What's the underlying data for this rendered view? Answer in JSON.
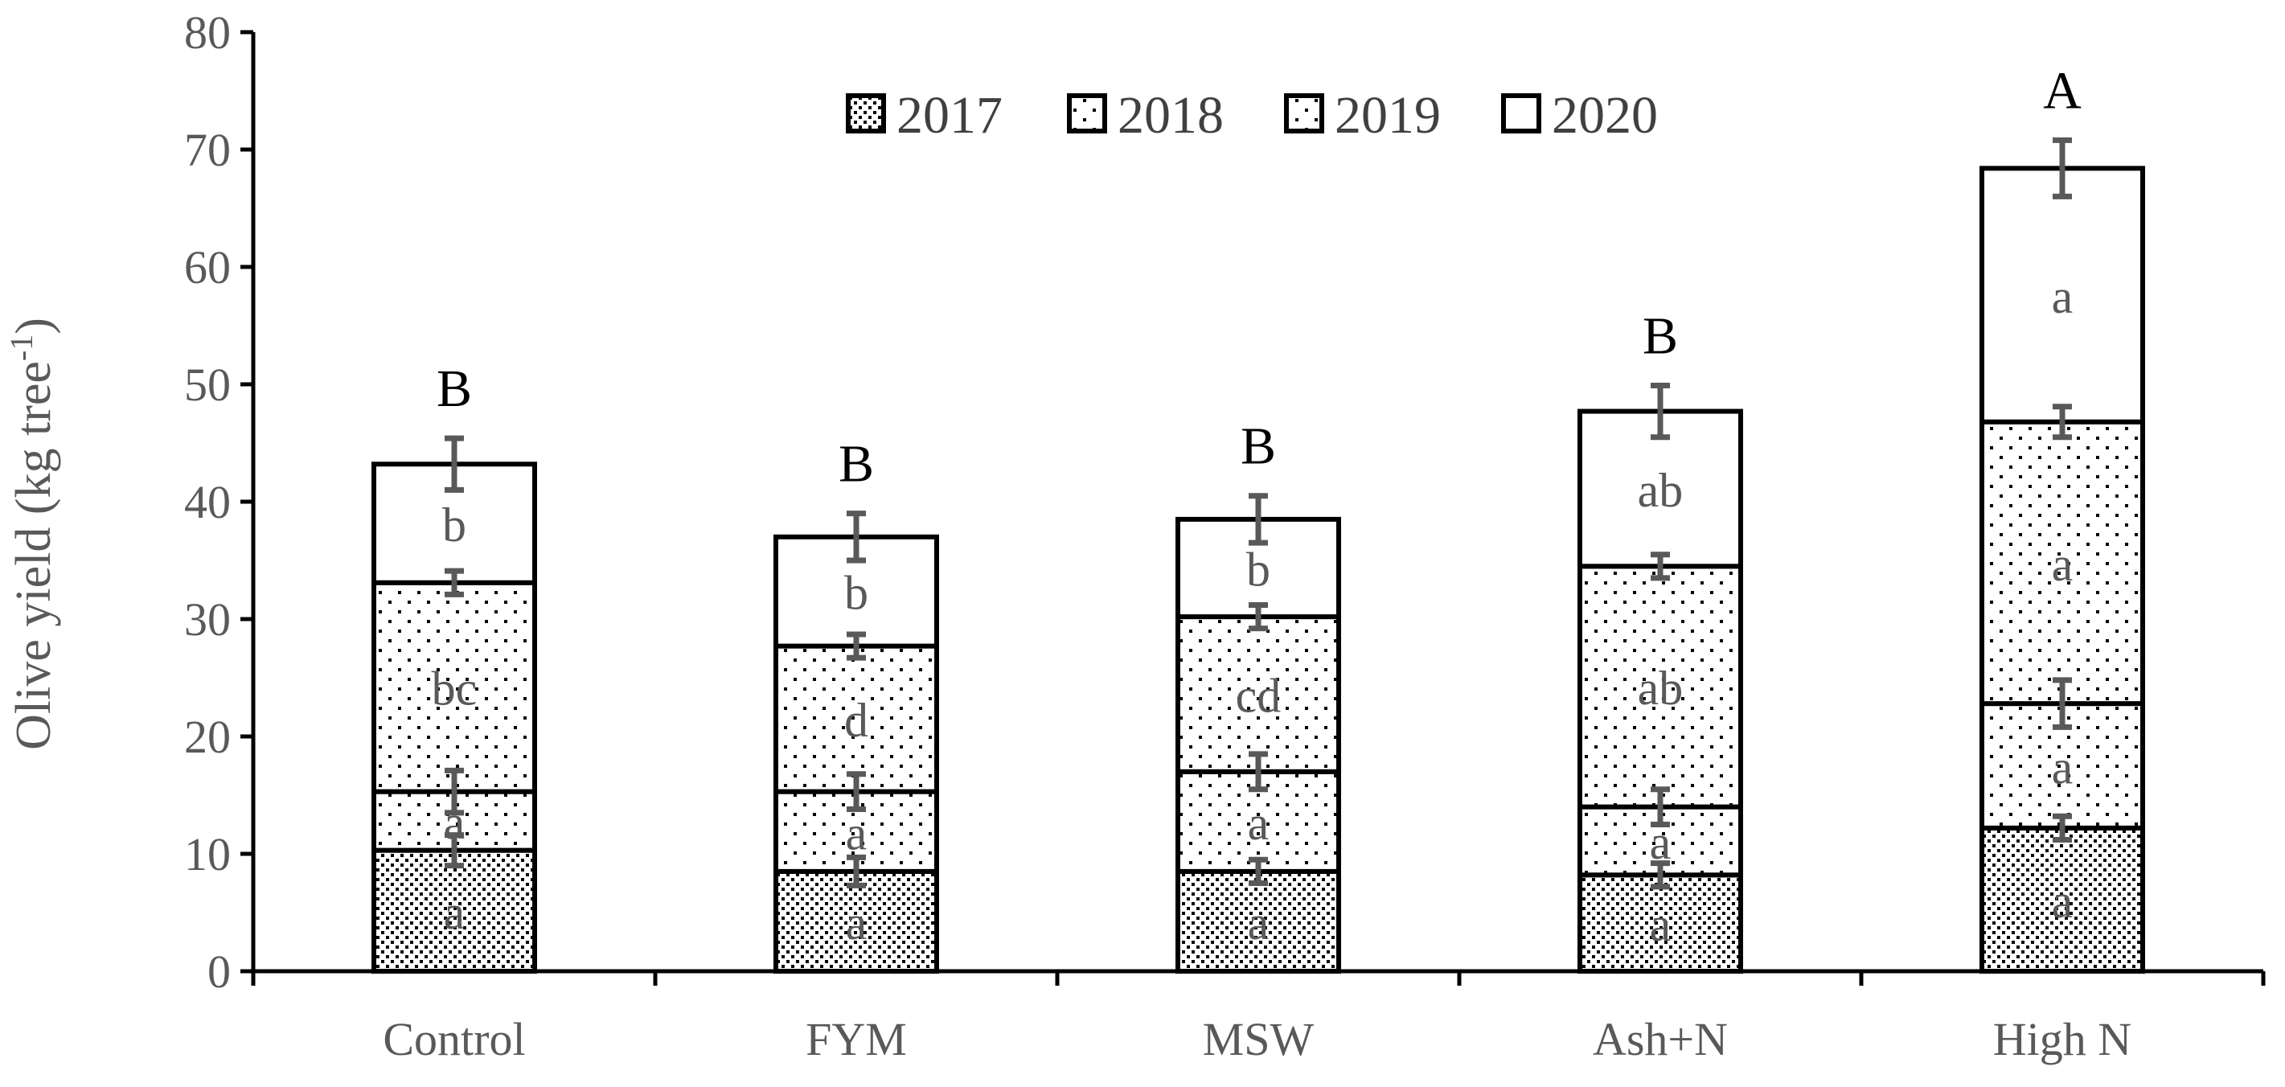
{
  "chart_data": {
    "type": "bar",
    "stacked": true,
    "title": "",
    "xlabel": "",
    "ylabel": "Olive yield (kg tree",
    "ylabel_superscript": "-1",
    "ylabel_suffix": ")",
    "ylim": [
      0,
      80
    ],
    "yticks": [
      0,
      10,
      20,
      30,
      40,
      50,
      60,
      70,
      80
    ],
    "legend_position": "top-center",
    "categories": [
      "Control",
      "FYM",
      "MSW",
      "Ash+N",
      "High N"
    ],
    "series": [
      {
        "name": "2017",
        "pattern": "dense-dots",
        "values": [
          10.3,
          8.5,
          8.5,
          8.2,
          12.2
        ],
        "errors": [
          1.3,
          1.2,
          1.0,
          1.0,
          1.0
        ],
        "labels": [
          "a",
          "a",
          "a",
          "a",
          "a"
        ]
      },
      {
        "name": "2018",
        "pattern": "sparse-dots",
        "values": [
          5.0,
          6.8,
          8.5,
          5.8,
          10.6
        ],
        "errors": [
          1.8,
          1.5,
          1.5,
          1.5,
          2.0
        ],
        "labels": [
          "a",
          "a",
          "a",
          "a",
          "a"
        ]
      },
      {
        "name": "2019",
        "pattern": "sparse-dots",
        "values": [
          17.8,
          12.4,
          13.2,
          20.5,
          24.0
        ],
        "errors": [
          1.0,
          1.0,
          1.0,
          1.0,
          1.3
        ],
        "labels": [
          "bc",
          "d",
          "cd",
          "ab",
          "a"
        ]
      },
      {
        "name": "2020",
        "pattern": "none",
        "values": [
          10.1,
          9.3,
          8.3,
          13.2,
          21.6
        ],
        "errors": [
          2.2,
          2.0,
          2.0,
          2.2,
          2.4
        ],
        "labels": [
          "b",
          "b",
          "b",
          "ab",
          "a"
        ]
      }
    ],
    "group_labels": [
      "B",
      "B",
      "B",
      "B",
      "A"
    ]
  }
}
